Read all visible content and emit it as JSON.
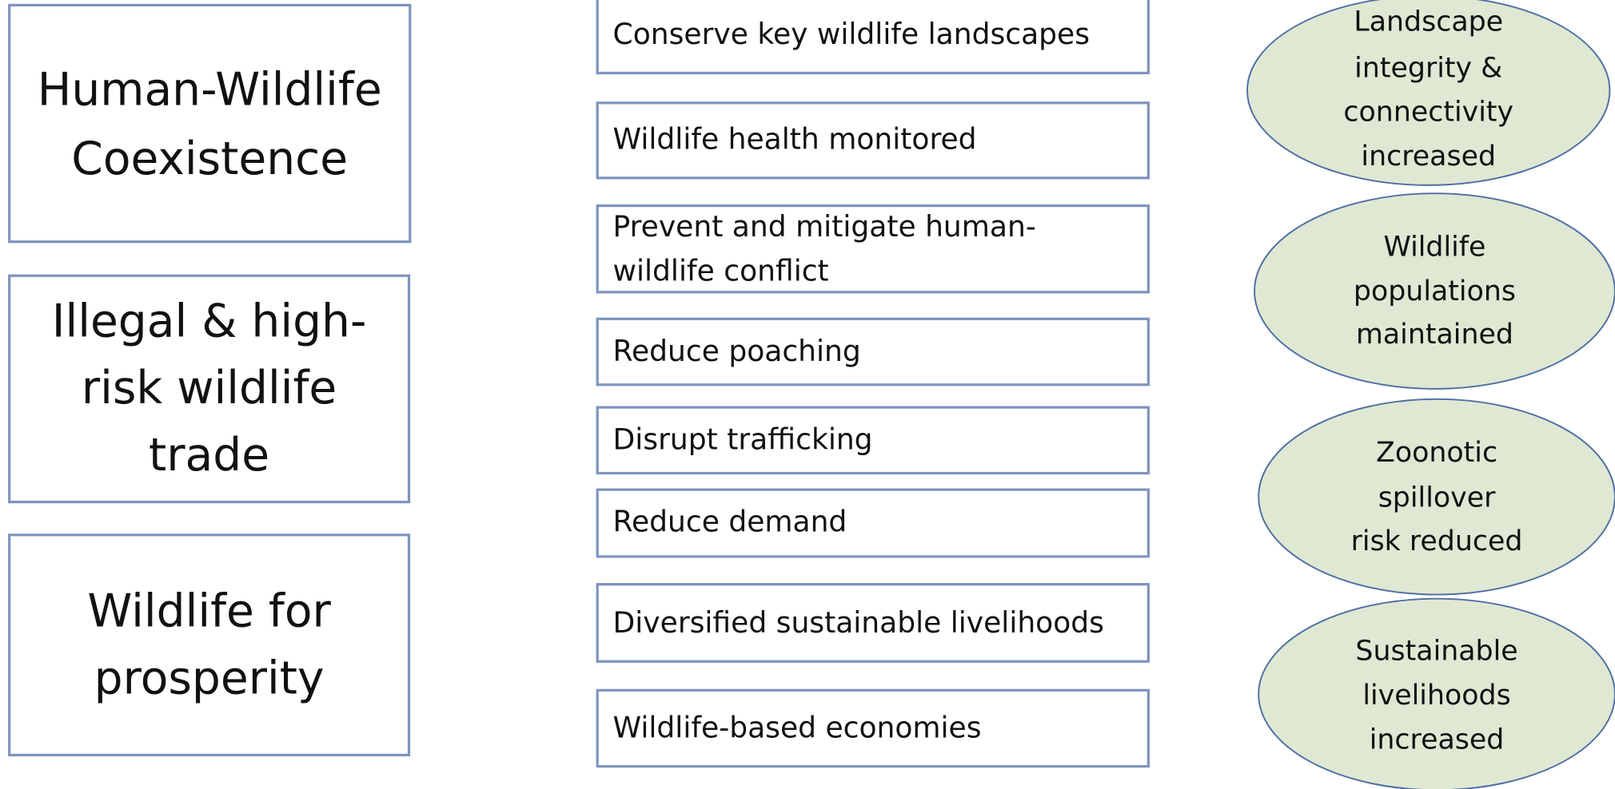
{
  "goals": [
    {
      "lines": [
        "Human-Wildlife",
        "Coexistence"
      ]
    },
    {
      "lines": [
        "Illegal & high-",
        "risk wildlife",
        "trade"
      ]
    },
    {
      "lines": [
        "Wildlife for",
        "prosperity"
      ]
    }
  ],
  "outputs": [
    {
      "lines": [
        "Conserve key wildlife landscapes"
      ]
    },
    {
      "lines": [
        "Wildlife health monitored"
      ]
    },
    {
      "lines": [
        "Prevent and mitigate human-",
        "wildlife conflict"
      ]
    },
    {
      "lines": [
        "Reduce poaching"
      ]
    },
    {
      "lines": [
        "Disrupt trafficking"
      ]
    },
    {
      "lines": [
        "Reduce demand"
      ]
    },
    {
      "lines": [
        "Diversified sustainable livelihoods"
      ]
    },
    {
      "lines": [
        "Wildlife-based economies"
      ]
    }
  ],
  "outcomes": [
    {
      "lines": [
        "Landscape",
        "integrity &",
        "connectivity",
        "increased"
      ]
    },
    {
      "lines": [
        "Wildlife",
        "populations",
        "maintained"
      ]
    },
    {
      "lines": [
        "Zoonotic",
        "spillover",
        "risk reduced"
      ]
    },
    {
      "lines": [
        "Sustainable",
        "livelihoods",
        "increased"
      ]
    }
  ]
}
